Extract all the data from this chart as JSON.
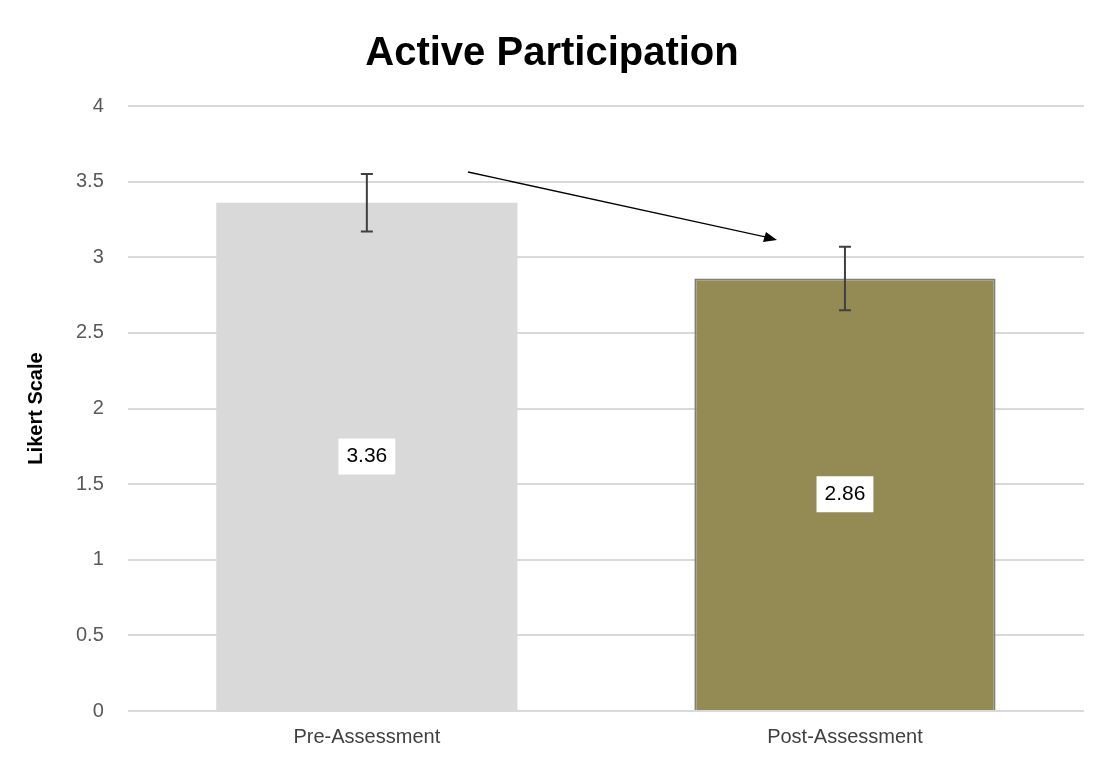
{
  "chart_data": {
    "type": "bar",
    "title": "Active Participation",
    "ylabel": "Likert Scale",
    "categories": [
      "Pre-Assessment",
      "Post-Assessment"
    ],
    "values": [
      3.36,
      2.86
    ],
    "colors": [
      "#d9d9d9",
      "#948a54"
    ],
    "errors": [
      0.19,
      0.21
    ],
    "data_labels": true,
    "ylim": [
      0,
      4
    ],
    "yticks": [
      0,
      0.5,
      1,
      1.5,
      2,
      2.5,
      3,
      3.5,
      4
    ],
    "grid": "y",
    "legend": false
  }
}
